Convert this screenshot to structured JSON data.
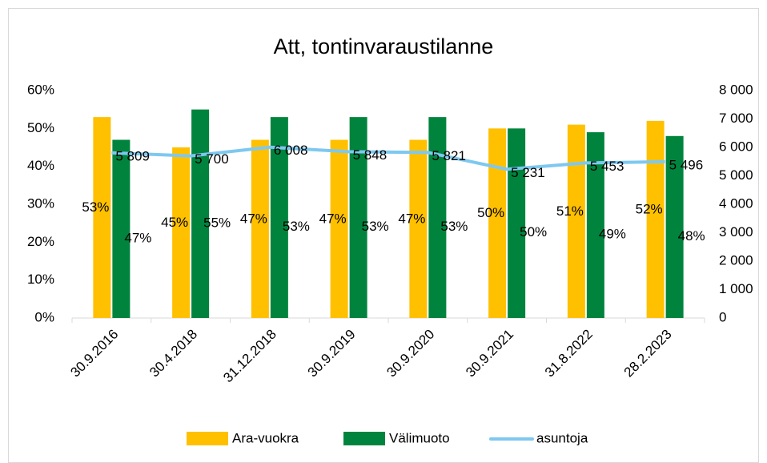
{
  "chart_data": {
    "type": "bar_line",
    "title": "Att, tontinvaraustilanne",
    "categories": [
      "30.9.2016",
      "30.4.2018",
      "31.12.2018",
      "30.9.2019",
      "30.9.2020",
      "30.9.2021",
      "31.8.2022",
      "28.2.2023"
    ],
    "series": [
      {
        "name": "Ara-vuokra",
        "color": "#ffc000",
        "type": "bar",
        "values": [
          53,
          45,
          47,
          47,
          47,
          50,
          51,
          52
        ],
        "value_labels": [
          "53%",
          "45%",
          "47%",
          "47%",
          "47%",
          "50%",
          "51%",
          "52%"
        ]
      },
      {
        "name": "Välimuoto",
        "color": "#00843d",
        "type": "bar",
        "values": [
          47,
          55,
          53,
          53,
          53,
          50,
          49,
          48
        ],
        "value_labels": [
          "47%",
          "55%",
          "53%",
          "53%",
          "53%",
          "50%",
          "49%",
          "48%"
        ]
      },
      {
        "name": "asuntoja",
        "color": "#7ec8f0",
        "type": "line",
        "axis": "y2",
        "values": [
          5809,
          5700,
          6008,
          5848,
          5821,
          5231,
          5453,
          5496
        ],
        "value_labels": [
          "5 809",
          "5 700",
          "6 008",
          "5 848",
          "5 821",
          "5 231",
          "5 453",
          "5 496"
        ]
      }
    ],
    "ylim": [
      0,
      60
    ],
    "yticks": [
      {
        "value": 0,
        "label": "0%"
      },
      {
        "value": 10,
        "label": "10%"
      },
      {
        "value": 20,
        "label": "20%"
      },
      {
        "value": 30,
        "label": "30%"
      },
      {
        "value": 40,
        "label": "40%"
      },
      {
        "value": 50,
        "label": "50%"
      },
      {
        "value": 60,
        "label": "60%"
      }
    ],
    "y2lim": [
      0,
      8000
    ],
    "y2ticks": [
      0,
      {
        "value": 1000,
        "label": "1 000"
      },
      {
        "value": 2000,
        "label": "2 000"
      },
      {
        "value": 3000,
        "label": "3 000"
      },
      {
        "value": 4000,
        "label": "4 000"
      },
      {
        "value": 5000,
        "label": "5 000"
      },
      {
        "value": 6000,
        "label": "6 000"
      },
      {
        "value": 7000,
        "label": "7 000"
      },
      {
        "value": 8000,
        "label": "8 000"
      }
    ],
    "legend": "bottom"
  }
}
